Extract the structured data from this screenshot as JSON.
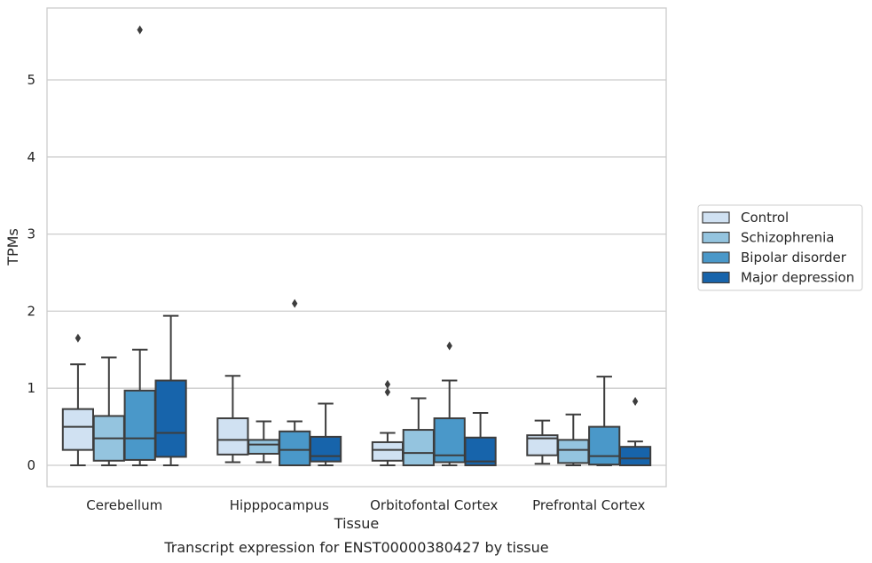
{
  "chart_data": {
    "type": "box",
    "caption": "Transcript expression for ENST00000380427 by tissue",
    "xlabel": "Tissue",
    "ylabel": "TPMs",
    "ylim": [
      -0.28,
      5.95
    ],
    "yticks": [
      0,
      1,
      2,
      3,
      4,
      5
    ],
    "grid": true,
    "legend_position": "right",
    "categories": [
      "Cerebellum",
      "Hipppocampus",
      "Orbitofontal Cortex",
      "Prefrontal Cortex"
    ],
    "series": [
      {
        "name": "Control",
        "color": "#d0e1f2",
        "boxes": [
          {
            "whislo": 0.0,
            "q1": 0.2,
            "med": 0.5,
            "q3": 0.73,
            "whishi": 1.31,
            "fliers": [
              1.65
            ]
          },
          {
            "whislo": 0.04,
            "q1": 0.14,
            "med": 0.33,
            "q3": 0.61,
            "whishi": 1.16,
            "fliers": []
          },
          {
            "whislo": 0.0,
            "q1": 0.06,
            "med": 0.2,
            "q3": 0.3,
            "whishi": 0.42,
            "fliers": [
              0.95,
              1.05
            ]
          },
          {
            "whislo": 0.02,
            "q1": 0.13,
            "med": 0.35,
            "q3": 0.39,
            "whishi": 0.58,
            "fliers": []
          }
        ]
      },
      {
        "name": "Schizophrenia",
        "color": "#94c4df",
        "boxes": [
          {
            "whislo": 0.0,
            "q1": 0.06,
            "med": 0.35,
            "q3": 0.64,
            "whishi": 1.4,
            "fliers": []
          },
          {
            "whislo": 0.04,
            "q1": 0.15,
            "med": 0.27,
            "q3": 0.33,
            "whishi": 0.57,
            "fliers": []
          },
          {
            "whislo": 0.0,
            "q1": 0.0,
            "med": 0.16,
            "q3": 0.46,
            "whishi": 0.87,
            "fliers": []
          },
          {
            "whislo": 0.0,
            "q1": 0.03,
            "med": 0.2,
            "q3": 0.33,
            "whishi": 0.66,
            "fliers": []
          }
        ]
      },
      {
        "name": "Bipolar disorder",
        "color": "#4a98c9",
        "boxes": [
          {
            "whislo": 0.0,
            "q1": 0.07,
            "med": 0.35,
            "q3": 0.97,
            "whishi": 1.5,
            "fliers": [
              5.65
            ]
          },
          {
            "whislo": 0.0,
            "q1": 0.0,
            "med": 0.2,
            "q3": 0.44,
            "whishi": 0.57,
            "fliers": [
              2.1
            ]
          },
          {
            "whislo": 0.0,
            "q1": 0.04,
            "med": 0.13,
            "q3": 0.61,
            "whishi": 1.1,
            "fliers": [
              1.55
            ]
          },
          {
            "whislo": 0.0,
            "q1": 0.01,
            "med": 0.12,
            "q3": 0.5,
            "whishi": 1.15,
            "fliers": []
          }
        ]
      },
      {
        "name": "Major depression",
        "color": "#1764ab",
        "boxes": [
          {
            "whislo": 0.0,
            "q1": 0.11,
            "med": 0.42,
            "q3": 1.1,
            "whishi": 1.94,
            "fliers": []
          },
          {
            "whislo": 0.0,
            "q1": 0.05,
            "med": 0.12,
            "q3": 0.37,
            "whishi": 0.8,
            "fliers": []
          },
          {
            "whislo": 0.0,
            "q1": 0.0,
            "med": 0.05,
            "q3": 0.36,
            "whishi": 0.68,
            "fliers": []
          },
          {
            "whislo": 0.0,
            "q1": 0.0,
            "med": 0.09,
            "q3": 0.24,
            "whishi": 0.31,
            "fliers": [
              0.83
            ]
          }
        ]
      }
    ]
  }
}
